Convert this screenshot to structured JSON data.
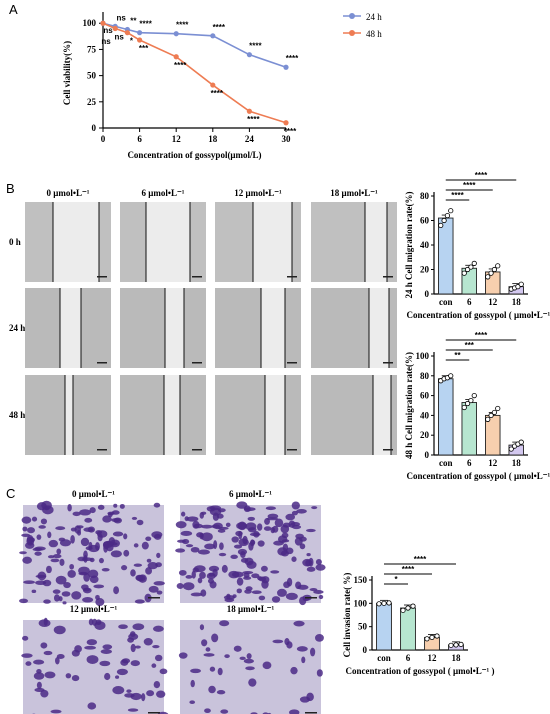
{
  "panels": {
    "A": "A",
    "B": "B",
    "C": "C"
  },
  "colors": {
    "line24": "#7b8fd3",
    "line48": "#ee7c53",
    "bar_con": "#b7d3f1",
    "bar_6": "#b7e6d0",
    "bar_12": "#f7cfae",
    "bar_18": "#d3c8ef"
  },
  "chart_data": [
    {
      "id": "A",
      "type": "line",
      "xlabel": "Concentration of gossypol(μmol/L)",
      "ylabel": "Cell viability(%)",
      "x": [
        0,
        2,
        4,
        6,
        12,
        18,
        24,
        30
      ],
      "xticks": [
        "0",
        "6",
        "12",
        "18",
        "24",
        "30"
      ],
      "xtick_values": [
        0,
        6,
        12,
        18,
        24,
        30
      ],
      "yticks": [
        "0",
        "25",
        "50",
        "75",
        "100"
      ],
      "ylim": [
        0,
        105
      ],
      "xlim": [
        0,
        30
      ],
      "legend": "top-right",
      "series": [
        {
          "name": "24 h",
          "color": "#7b8fd3",
          "values": [
            100,
            97,
            94,
            91,
            90,
            88,
            70,
            58
          ],
          "sig": [
            "",
            "ns",
            "**",
            "****",
            "****",
            "****",
            "****",
            "****"
          ]
        },
        {
          "name": "48 h",
          "color": "#ee7c53",
          "values": [
            100,
            95,
            91,
            84,
            68,
            41,
            16,
            5
          ],
          "sig": [
            "",
            "ns",
            "*",
            "***",
            "****",
            "****",
            "****",
            "****"
          ]
        }
      ],
      "extra_sig": [
        "ns",
        "ns"
      ]
    },
    {
      "id": "B24",
      "type": "bar",
      "ylabel": "24 h Cell migration rate(%)",
      "xlabel": "Concentration of gossypol ( μmol•L⁻¹ )",
      "categories": [
        "con",
        "6",
        "12",
        "18"
      ],
      "values": [
        62,
        21,
        18,
        6
      ],
      "points": [
        [
          56,
          60,
          64,
          68
        ],
        [
          17,
          20,
          22,
          25
        ],
        [
          14,
          17,
          20,
          23
        ],
        [
          4,
          5,
          6,
          8
        ]
      ],
      "yticks": [
        "0",
        "20",
        "40",
        "60",
        "80"
      ],
      "ylim": [
        0,
        80
      ],
      "sig": [
        "****",
        "****",
        "****"
      ]
    },
    {
      "id": "B48",
      "type": "bar",
      "ylabel": "48 h Cell migration rate(%)",
      "xlabel": "Concentration of gossypol ( μmol•L⁻¹ )",
      "categories": [
        "con",
        "6",
        "12",
        "18"
      ],
      "values": [
        77,
        53,
        40,
        10
      ],
      "points": [
        [
          75,
          77,
          78,
          80
        ],
        [
          48,
          52,
          55,
          60
        ],
        [
          36,
          40,
          43,
          47
        ],
        [
          6,
          9,
          11,
          13
        ]
      ],
      "yticks": [
        "0",
        "20",
        "40",
        "60",
        "80",
        "100"
      ],
      "ylim": [
        0,
        100
      ],
      "sig": [
        "**",
        "***",
        "****"
      ]
    },
    {
      "id": "C",
      "type": "bar",
      "ylabel": "Cell invasion rate( %)",
      "xlabel": "Concentration of gossypol ( μmol•L⁻¹ )",
      "categories": [
        "con",
        "6",
        "12",
        "18"
      ],
      "values": [
        100,
        90,
        27,
        11
      ],
      "points": [
        [
          99,
          100,
          101
        ],
        [
          85,
          90,
          94
        ],
        [
          24,
          27,
          30
        ],
        [
          10,
          11,
          12
        ]
      ],
      "yticks": [
        "0",
        "50",
        "100",
        "150"
      ],
      "ylim": [
        0,
        150
      ],
      "sig": [
        "*",
        "****",
        "****"
      ]
    }
  ],
  "wound": {
    "cols": [
      "0 μmol•L⁻¹",
      "6 μmol•L⁻¹",
      "12 μmol•L⁻¹",
      "18 μmol•L⁻¹"
    ],
    "rows": [
      "0 h",
      "24 h",
      "48 h"
    ]
  },
  "invasion": {
    "labels": [
      "0 μmol•L⁻¹",
      "6 μmol•L⁻¹",
      "12 μmol•L⁻¹",
      "18 μmol•L⁻¹"
    ]
  }
}
